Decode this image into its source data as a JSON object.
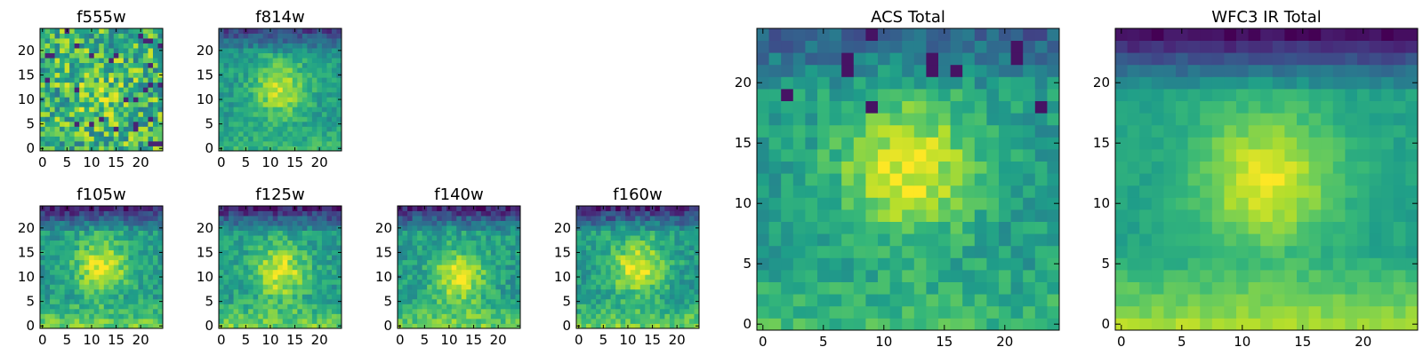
{
  "figure": {
    "description_type": "astronomical image cutouts (heatmaps) per filter and combined totals",
    "colormap": "viridis"
  },
  "chart_data": [
    {
      "type": "heatmap",
      "title": "f555w",
      "grid_size": 25,
      "x_ticks": [
        0,
        5,
        10,
        15,
        20
      ],
      "y_ticks": [
        0,
        5,
        10,
        15,
        20
      ],
      "xlim": [
        -0.5,
        24.5
      ],
      "ylim": [
        -0.5,
        24.5
      ],
      "profile": "noise",
      "center": [
        12,
        11
      ]
    },
    {
      "type": "heatmap",
      "title": "f814w",
      "grid_size": 25,
      "x_ticks": [
        0,
        5,
        10,
        15,
        20
      ],
      "y_ticks": [
        0,
        5,
        10,
        15,
        20
      ],
      "xlim": [
        -0.5,
        24.5
      ],
      "ylim": [
        -0.5,
        24.5
      ],
      "profile": "faint-source",
      "center": [
        12,
        12
      ]
    },
    {
      "type": "heatmap",
      "title": "f105w",
      "grid_size": 25,
      "x_ticks": [
        0,
        5,
        10,
        15,
        20
      ],
      "y_ticks": [
        0,
        5,
        10,
        15,
        20
      ],
      "xlim": [
        -0.5,
        24.5
      ],
      "ylim": [
        -0.5,
        24.5
      ],
      "profile": "source",
      "center": [
        12,
        12
      ]
    },
    {
      "type": "heatmap",
      "title": "f125w",
      "grid_size": 25,
      "x_ticks": [
        0,
        5,
        10,
        15,
        20
      ],
      "y_ticks": [
        0,
        5,
        10,
        15,
        20
      ],
      "xlim": [
        -0.5,
        24.5
      ],
      "ylim": [
        -0.5,
        24.5
      ],
      "profile": "source",
      "center": [
        12,
        11
      ]
    },
    {
      "type": "heatmap",
      "title": "f140w",
      "grid_size": 25,
      "x_ticks": [
        0,
        5,
        10,
        15,
        20
      ],
      "y_ticks": [
        0,
        5,
        10,
        15,
        20
      ],
      "xlim": [
        -0.5,
        24.5
      ],
      "ylim": [
        -0.5,
        24.5
      ],
      "profile": "source",
      "center": [
        12,
        10
      ]
    },
    {
      "type": "heatmap",
      "title": "f160w",
      "grid_size": 25,
      "x_ticks": [
        0,
        5,
        10,
        15,
        20
      ],
      "y_ticks": [
        0,
        5,
        10,
        15,
        20
      ],
      "xlim": [
        -0.5,
        24.5
      ],
      "ylim": [
        -0.5,
        24.5
      ],
      "profile": "source",
      "center": [
        12,
        12
      ]
    },
    {
      "type": "heatmap",
      "title": "ACS Total",
      "grid_size": 25,
      "x_ticks": [
        0,
        5,
        10,
        15,
        20
      ],
      "y_ticks": [
        0,
        5,
        10,
        15,
        20
      ],
      "xlim": [
        -0.5,
        24.5
      ],
      "ylim": [
        -0.5,
        24.5
      ],
      "profile": "total-acs",
      "center": [
        12,
        13
      ]
    },
    {
      "type": "heatmap",
      "title": "WFC3 IR Total",
      "grid_size": 25,
      "x_ticks": [
        0,
        5,
        10,
        15,
        20
      ],
      "y_ticks": [
        0,
        5,
        10,
        15,
        20
      ],
      "xlim": [
        -0.5,
        24.5
      ],
      "ylim": [
        -0.5,
        24.5
      ],
      "profile": "total-ir",
      "center": [
        12,
        12
      ]
    }
  ]
}
